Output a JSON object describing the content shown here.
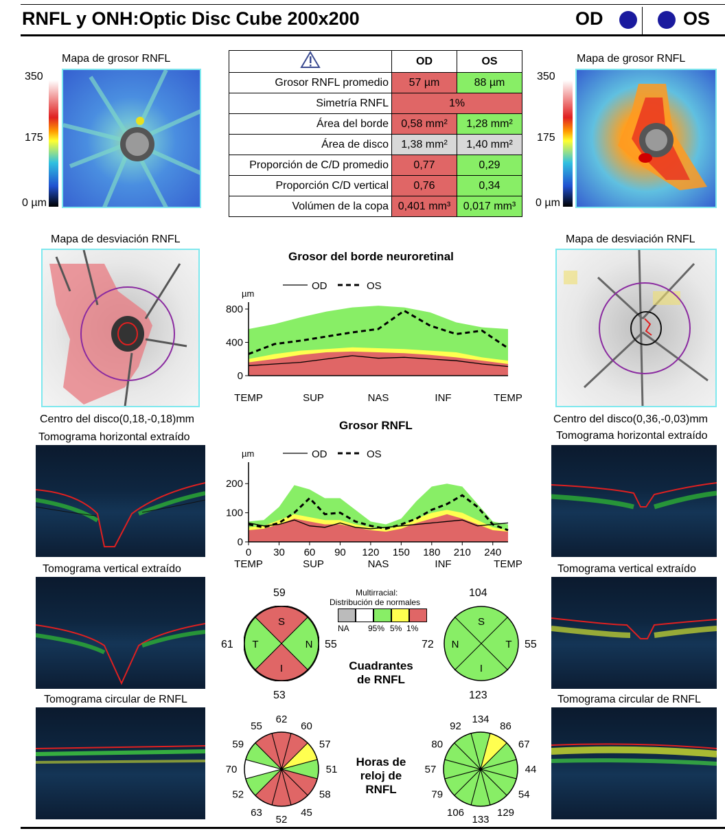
{
  "header": {
    "title": "RNFL y ONH:Optic Disc Cube 200x200",
    "od": "OD",
    "os": "OS"
  },
  "thickness_map": {
    "title": "Mapa de grosor RNFL",
    "scale_max": "350",
    "scale_mid": "175",
    "scale_min": "0 µm"
  },
  "deviation_map": {
    "title": "Mapa de desviación RNFL"
  },
  "disc_center": {
    "od": "Centro del disco(0,18,-0,18)mm",
    "os": "Centro del disco(0,36,-0,03)mm"
  },
  "tomograms": {
    "horizontal": "Tomograma horizontal extraído",
    "vertical": "Tomograma vertical extraído",
    "circular": "Tomograma circular de RNFL"
  },
  "table": {
    "col_od": "OD",
    "col_os": "OS",
    "rows": [
      {
        "label": "Grosor RNFL promedio",
        "od": "57 µm",
        "os": "88 µm"
      },
      {
        "label": "Simetría RNFL",
        "both": "1%"
      },
      {
        "label": "Área del borde",
        "od": "0,58 mm²",
        "os": "1,28 mm²"
      },
      {
        "label": "Área de disco",
        "od": "1,38 mm²",
        "os": "1,40 mm²"
      },
      {
        "label": "Proporción de C/D promedio",
        "od": "0,77",
        "os": "0,29"
      },
      {
        "label": "Proporción C/D vertical",
        "od": "0,76",
        "os": "0,34"
      },
      {
        "label": "Volúmen de la copa",
        "od": "0,401 mm³",
        "os": "0,017 mm³"
      }
    ]
  },
  "chart_data": [
    {
      "type": "line",
      "title": "Grosor del borde neuroretinal",
      "ylabel": "µm",
      "ylim": [
        0,
        800
      ],
      "yticks": [
        0,
        400,
        800
      ],
      "xtick_labels": [
        "TEMP",
        "SUP",
        "NAS",
        "INF",
        "TEMP"
      ],
      "legend": [
        "OD",
        "OS"
      ],
      "x": [
        0,
        6,
        12,
        18,
        24,
        30,
        36,
        42,
        48,
        54,
        60
      ],
      "series": [
        {
          "name": "OD",
          "values": [
            120,
            140,
            160,
            200,
            240,
            210,
            220,
            200,
            180,
            140,
            110
          ]
        },
        {
          "name": "OS",
          "values": [
            260,
            380,
            420,
            470,
            520,
            560,
            780,
            600,
            500,
            540,
            330
          ]
        }
      ]
    },
    {
      "type": "line",
      "title": "Grosor RNFL",
      "ylabel": "µm",
      "ylim": [
        0,
        250
      ],
      "yticks": [
        0,
        100,
        200
      ],
      "xticks": [
        0,
        30,
        60,
        90,
        120,
        150,
        180,
        210,
        240
      ],
      "xtick_labels": [
        "TEMP",
        "SUP",
        "NAS",
        "INF",
        "TEMP"
      ],
      "legend": [
        "OD",
        "OS"
      ],
      "x": [
        0,
        15,
        30,
        45,
        60,
        75,
        90,
        105,
        120,
        135,
        150,
        165,
        180,
        195,
        210,
        225,
        240,
        255
      ],
      "series": [
        {
          "name": "OD",
          "values": [
            65,
            55,
            60,
            75,
            55,
            50,
            65,
            50,
            45,
            50,
            55,
            60,
            65,
            70,
            75,
            55,
            60,
            65
          ]
        },
        {
          "name": "OS",
          "values": [
            60,
            50,
            65,
            100,
            150,
            95,
            100,
            70,
            55,
            45,
            60,
            80,
            110,
            130,
            160,
            120,
            60,
            40
          ]
        }
      ]
    }
  ],
  "legend_distribution": {
    "title1": "Multirracial:",
    "title2": "Distribución de normales",
    "na": "NA",
    "p95": "95%",
    "p5": "5%",
    "p1": "1%"
  },
  "quadrants": {
    "title": "Cuadrantes de RNFL",
    "od": {
      "S": "59",
      "T": "61",
      "N": "55",
      "I": "53"
    },
    "os": {
      "S": "104",
      "N": "72",
      "T": "55",
      "I": "123"
    }
  },
  "clock": {
    "title": "Horas de reloj de RNFL",
    "od": [
      "62",
      "60",
      "57",
      "51",
      "58",
      "45",
      "52",
      "63",
      "52",
      "70",
      "59",
      "55"
    ],
    "os": [
      "134",
      "86",
      "67",
      "44",
      "54",
      "129",
      "133",
      "106",
      "79",
      "57",
      "80",
      "92"
    ]
  }
}
